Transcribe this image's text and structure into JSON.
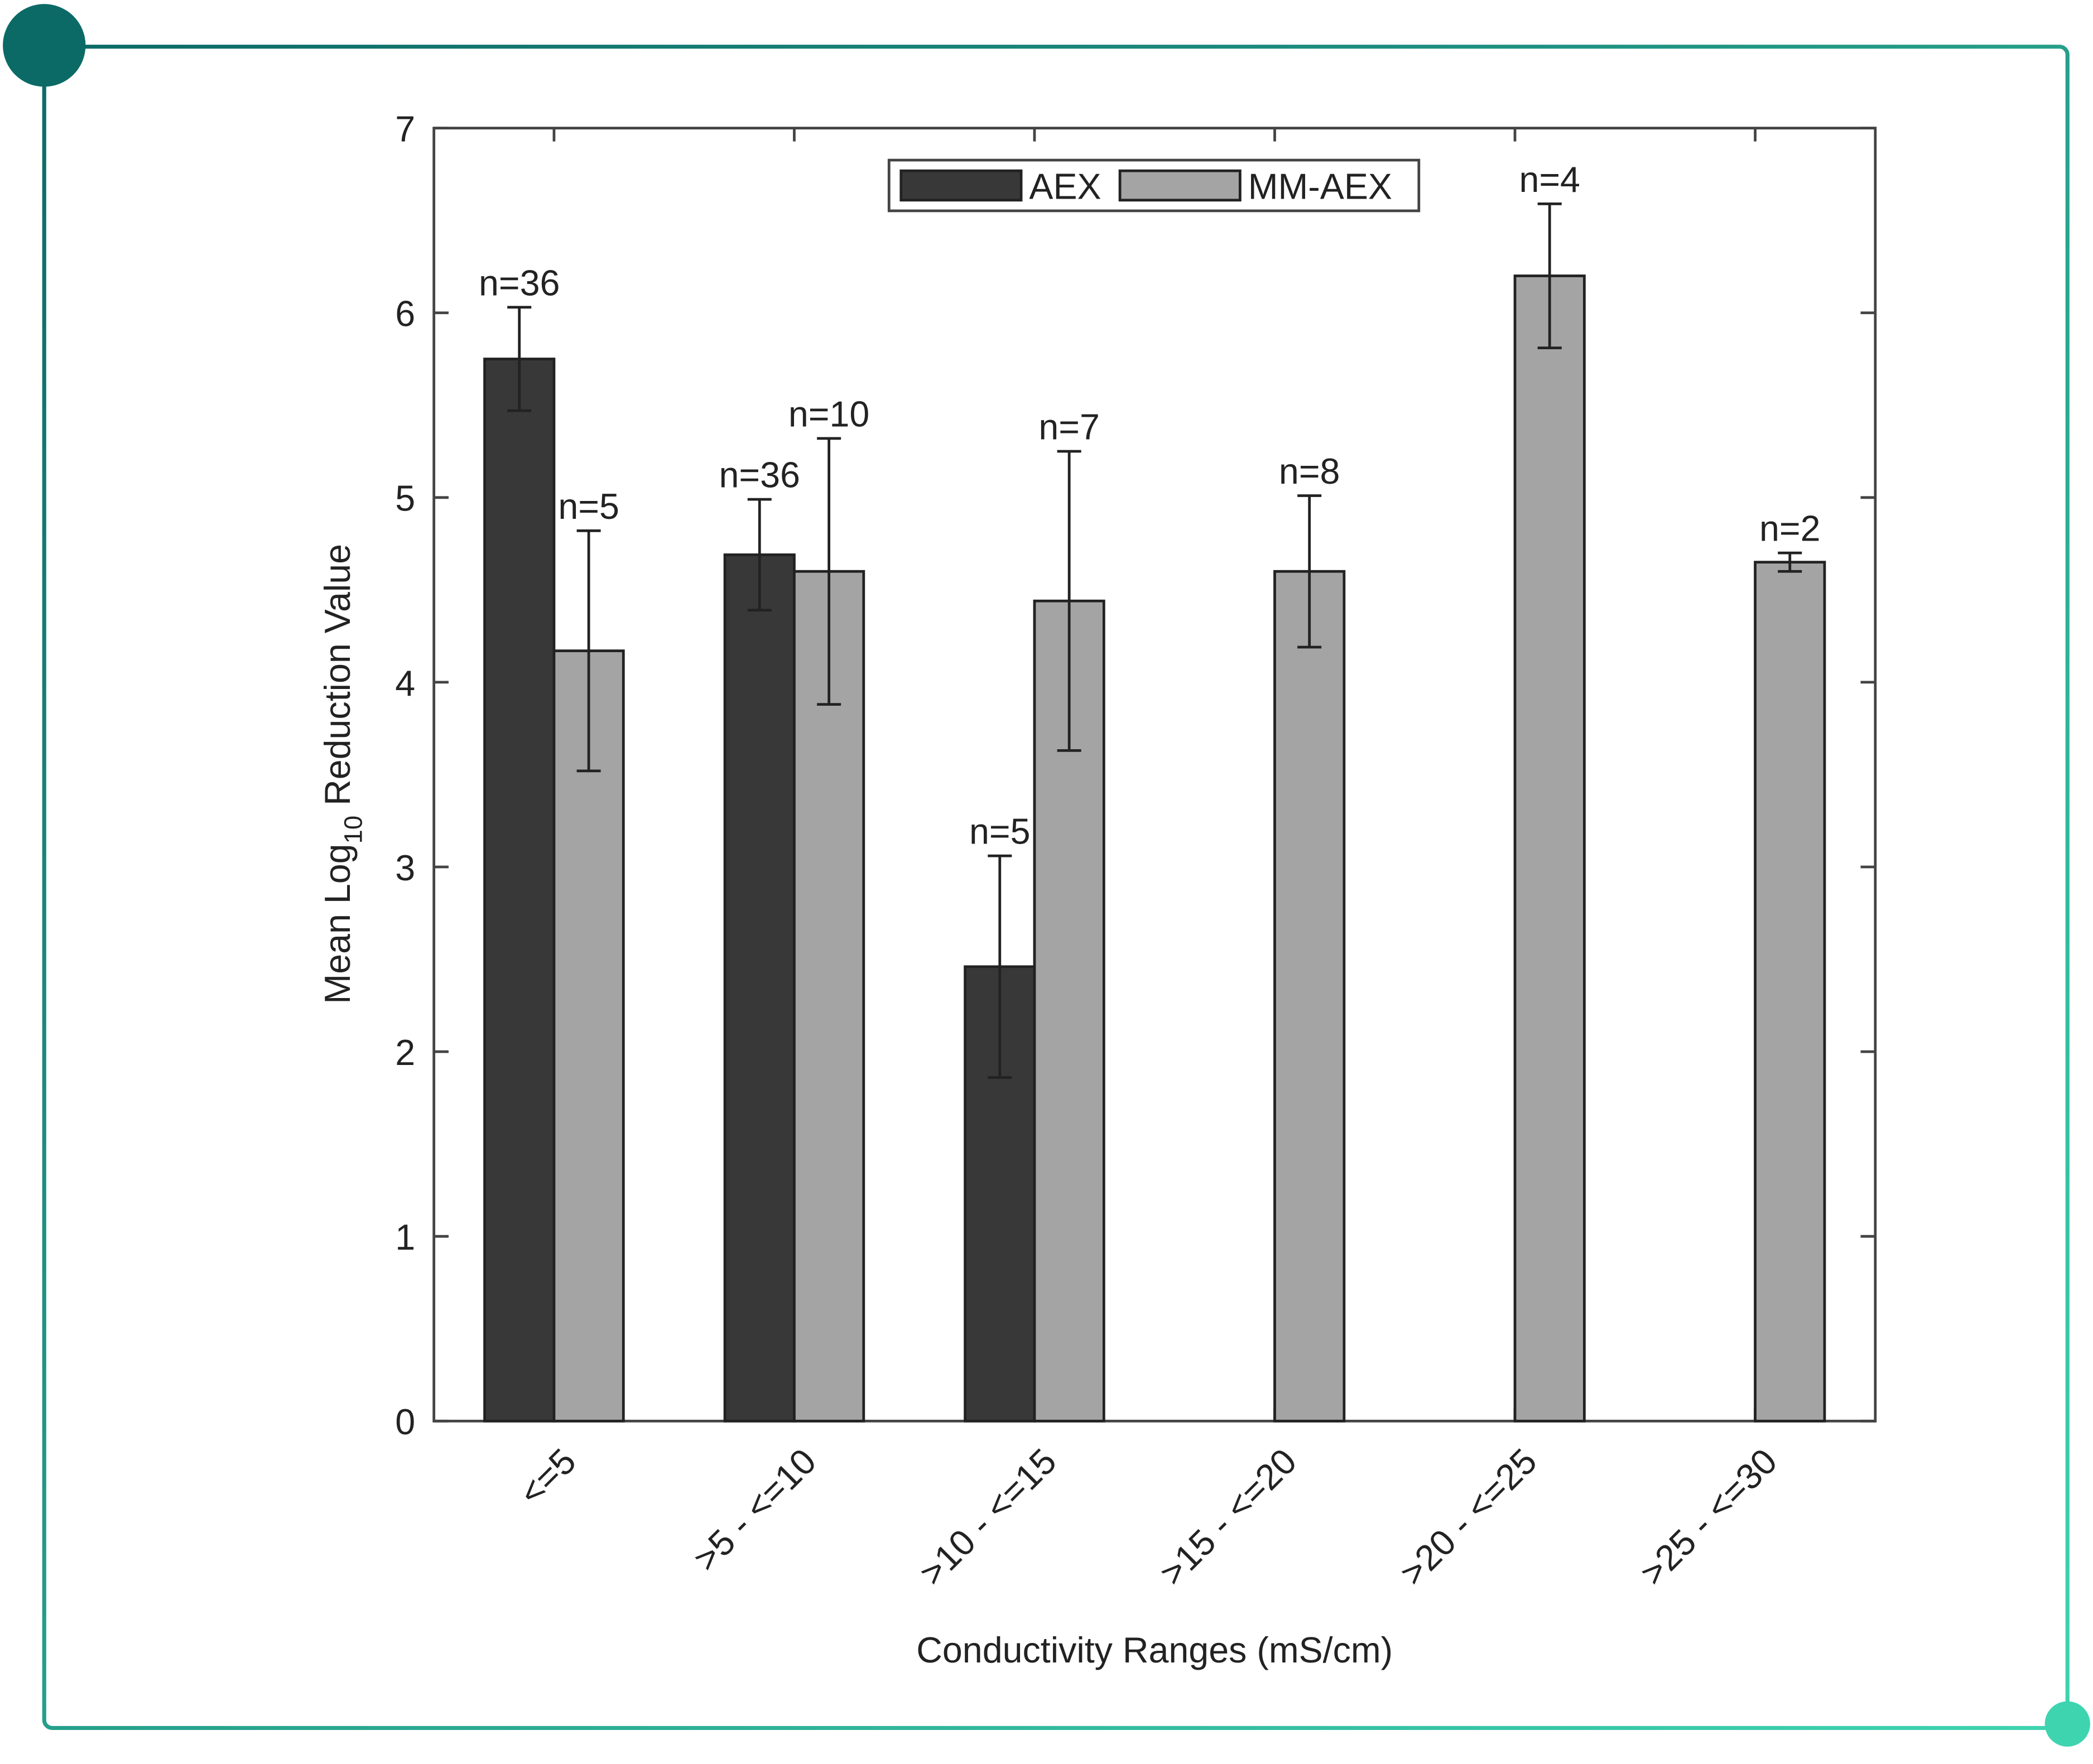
{
  "chart_data": {
    "type": "bar",
    "ylabel": [
      "Mean Log",
      "10",
      " Reduction Value"
    ],
    "xlabel": "Conductivity Ranges (mS/cm)",
    "categories": [
      "<=5",
      ">5 - <=10",
      ">10 - <=15",
      ">15 - <=20",
      ">20 - <=25",
      ">25 - <=30"
    ],
    "series": [
      {
        "name": "AEX",
        "color": "#383838",
        "values": [
          5.75,
          4.69,
          2.46,
          null,
          null,
          null
        ],
        "errors": [
          0.28,
          0.3,
          0.6,
          null,
          null,
          null
        ],
        "n_labels": [
          "n=36",
          "n=36",
          "n=5",
          null,
          null,
          null
        ]
      },
      {
        "name": "MM-AEX",
        "color": "#a4a4a4",
        "values": [
          4.17,
          4.6,
          4.44,
          4.6,
          6.2,
          4.65
        ],
        "errors": [
          0.65,
          0.72,
          0.81,
          0.41,
          0.39,
          0.05
        ],
        "n_labels": [
          "n=5",
          "n=10",
          "n=7",
          "n=8",
          "n=4",
          "n=2"
        ]
      }
    ],
    "ylim": [
      0,
      7
    ],
    "yticks": [
      0,
      1,
      2,
      3,
      4,
      5,
      6,
      7
    ],
    "legend": "top"
  }
}
